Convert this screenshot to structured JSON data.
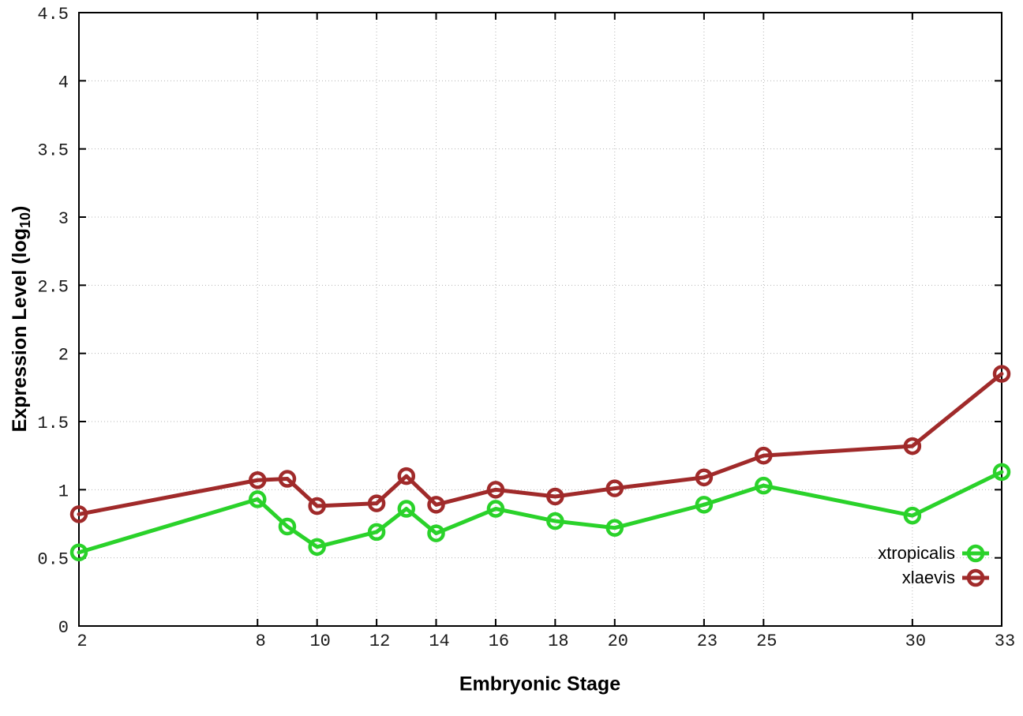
{
  "chart_data": {
    "type": "line",
    "title": "",
    "xlabel": "Embryonic Stage",
    "ylabel_base": "Expression Level (log",
    "ylabel_sub": "10",
    "ylabel_close": ")",
    "x": [
      2,
      8,
      9,
      10,
      12,
      13,
      14,
      16,
      18,
      20,
      23,
      25,
      30,
      33
    ],
    "xticks": [
      2,
      8,
      10,
      12,
      14,
      16,
      18,
      20,
      23,
      25,
      30,
      33
    ],
    "yticks": [
      0,
      0.5,
      1,
      1.5,
      2,
      2.5,
      3,
      3.5,
      4,
      4.5
    ],
    "xlim": [
      2,
      33
    ],
    "ylim": [
      0,
      4.5
    ],
    "grid": true,
    "legend_position": "inside-bottom-right",
    "series": [
      {
        "name": "xtropicalis",
        "color": "#2ad22a",
        "values": [
          0.54,
          0.93,
          0.73,
          0.58,
          0.69,
          0.86,
          0.68,
          0.86,
          0.77,
          0.72,
          0.89,
          1.03,
          0.81,
          1.13
        ]
      },
      {
        "name": "xlaevis",
        "color": "#a02a2a",
        "values": [
          0.82,
          1.07,
          1.08,
          0.88,
          0.9,
          1.1,
          0.89,
          1.0,
          0.95,
          1.01,
          1.09,
          1.25,
          1.32,
          1.85
        ]
      }
    ],
    "colors": {
      "axis": "#000000",
      "grid": "#b4b4b4",
      "tick_label": "#1a1a1a",
      "background": "#ffffff"
    }
  }
}
